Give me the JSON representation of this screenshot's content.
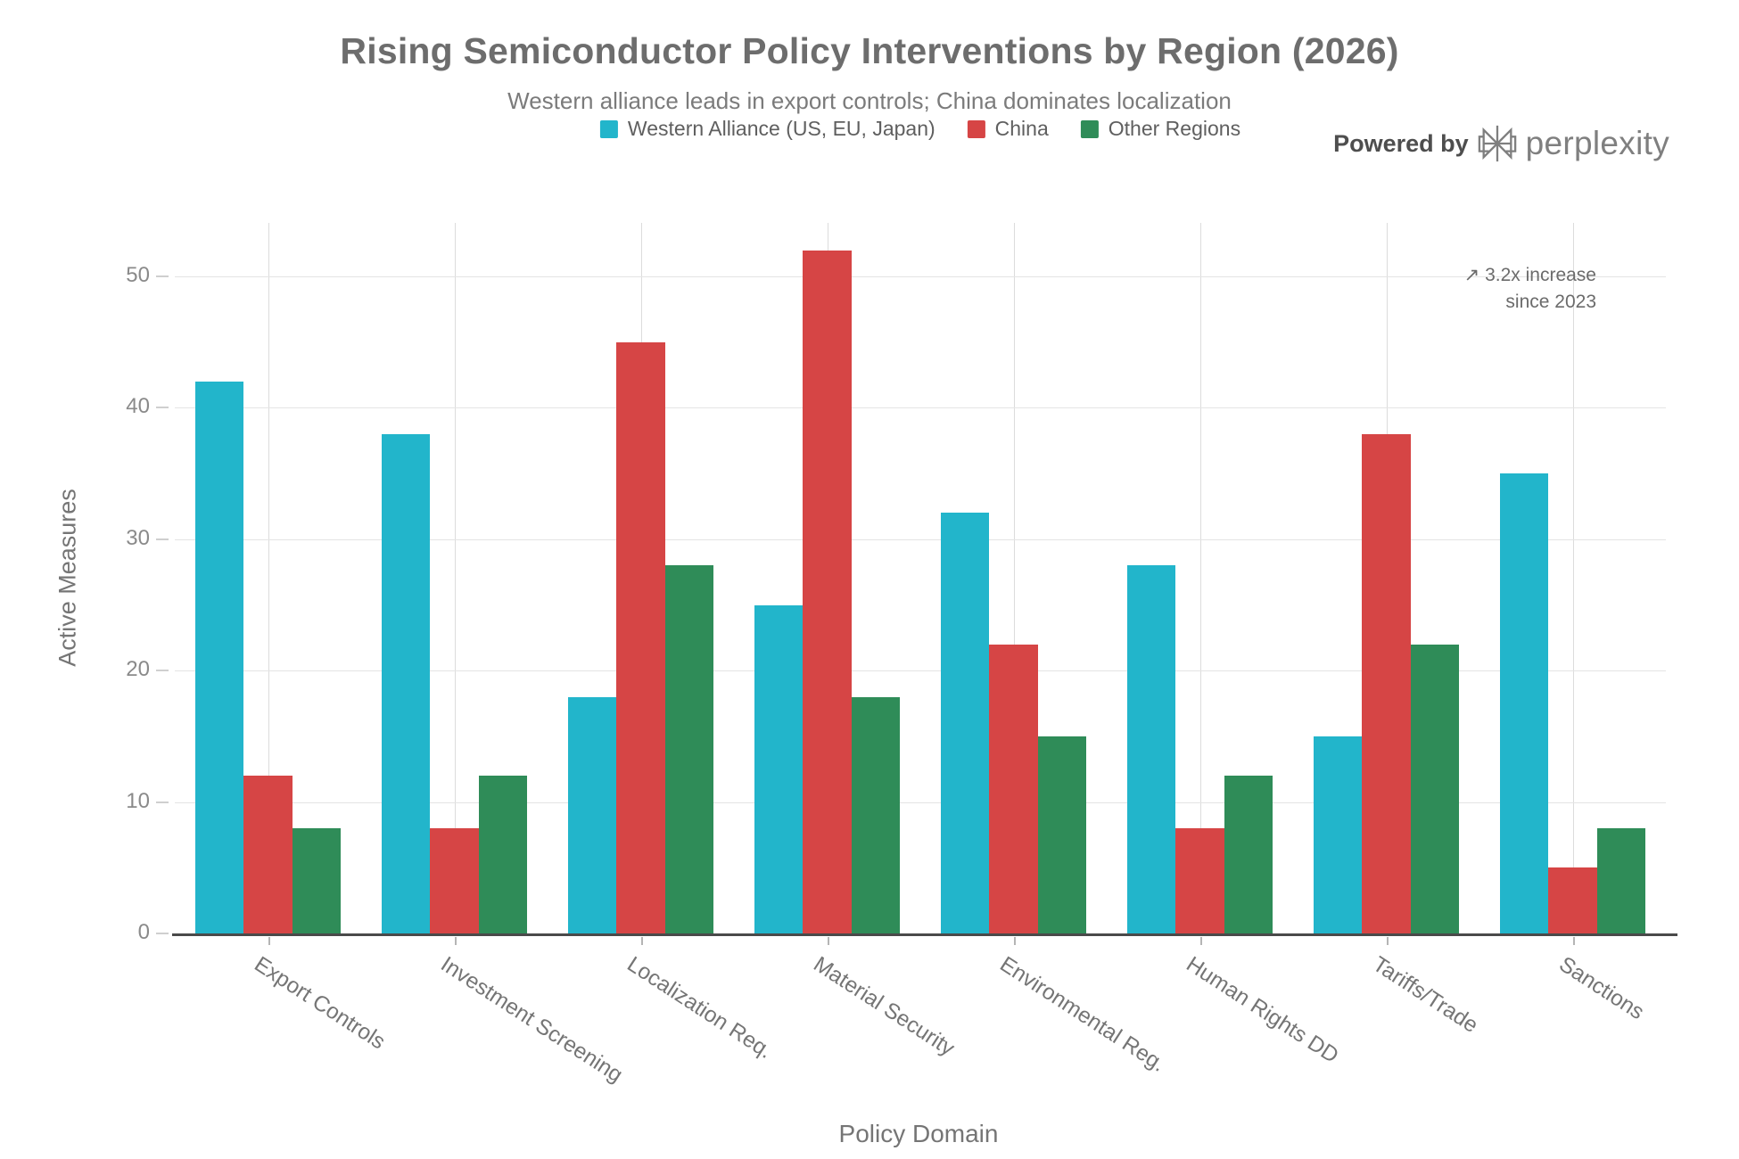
{
  "title": "Rising Semiconductor Policy Interventions by Region (2026)",
  "subtitle": "Western alliance leads in export controls; China dominates localization",
  "powered_by": {
    "label": "Powered by",
    "brand": "perplexity"
  },
  "annotation": {
    "line1": "↗ 3.2x increase",
    "line2": "since 2023"
  },
  "colors": {
    "western_alliance": "#22b5cb",
    "china": "#d64545",
    "other_regions": "#2f8c58",
    "grid": "#e4e4e4",
    "axis_line": "#4a4a4a",
    "text_gray": "#6d6d6d"
  },
  "chart_data": {
    "type": "bar",
    "title": "Rising Semiconductor Policy Interventions by Region (2026)",
    "subtitle": "Western alliance leads in export controls; China dominates localization",
    "xlabel": "Policy Domain",
    "ylabel": "Active Measures",
    "categories": [
      "Export Controls",
      "Investment Screening",
      "Localization Req.",
      "Material Security",
      "Environmental Reg.",
      "Human Rights DD",
      "Tariffs/Trade",
      "Sanctions"
    ],
    "series": [
      {
        "name": "Western Alliance (US, EU, Japan)",
        "color": "#22b5cb",
        "values": [
          42,
          38,
          18,
          25,
          32,
          28,
          15,
          35
        ]
      },
      {
        "name": "China",
        "color": "#d64545",
        "values": [
          12,
          8,
          45,
          52,
          22,
          8,
          38,
          5
        ]
      },
      {
        "name": "Other Regions",
        "color": "#2f8c58",
        "values": [
          8,
          12,
          28,
          18,
          15,
          12,
          22,
          8
        ]
      }
    ],
    "yticks": [
      0,
      10,
      20,
      30,
      40,
      50
    ],
    "ylim": [
      0,
      54
    ],
    "grid": true,
    "legend_position": "top",
    "bar_mode": "grouped",
    "annotation": "↗ 3.2x increase since 2023"
  }
}
